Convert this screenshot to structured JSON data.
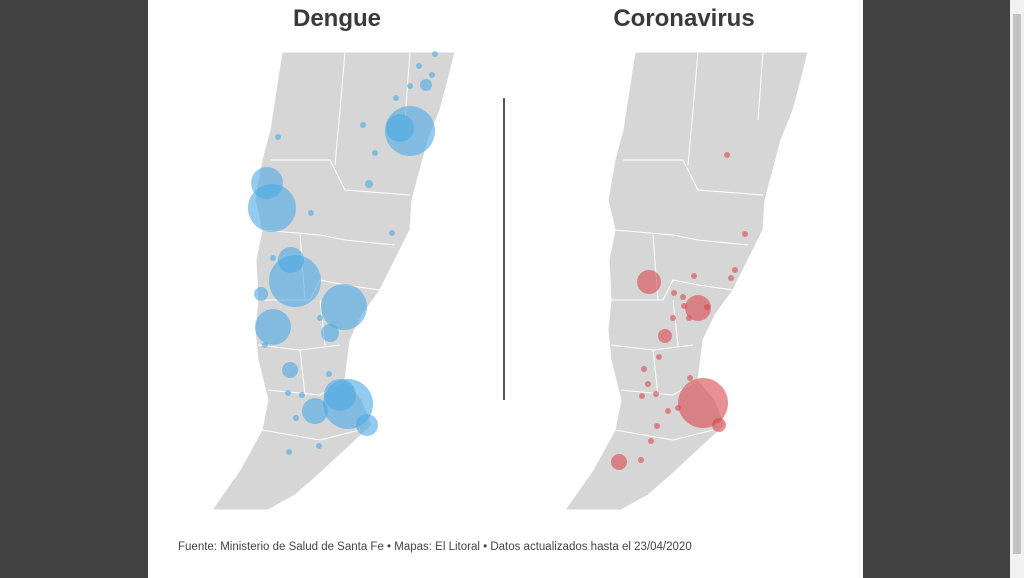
{
  "maps": [
    {
      "title": "Dengue"
    },
    {
      "title": "Coronavirus"
    }
  ],
  "footer": {
    "source": "Fuente: Ministerio de Salud de Santa Fe • Mapas: El Litoral • Datos actualizados hasta el 23/04/2020"
  }
}
